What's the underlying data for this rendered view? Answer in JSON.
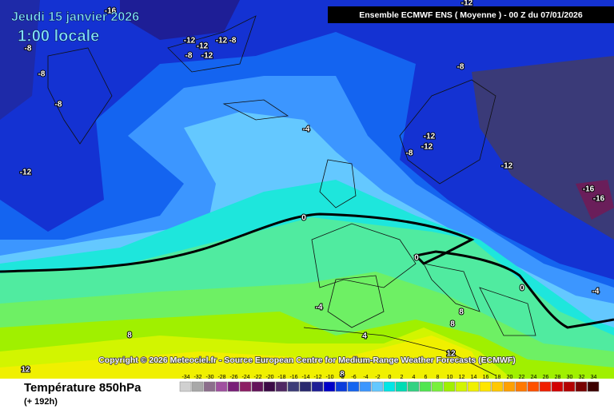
{
  "header": {
    "date": "Jeudi 15 janvier 2026",
    "time": "1:00 locale",
    "model": "Ensemble ECMWF ENS  ( Moyenne )  -  00 Z du 07/01/2026"
  },
  "copyright": "Copyright © 2026 Meteociel.fr - Source European Centre for Medium-Range Weather Forecasts (ECMWF)",
  "footer": {
    "title": "Température 850hPa",
    "subtitle": "(+ 192h)"
  },
  "contour_labels": [
    -16,
    -12,
    -12,
    -12,
    -8,
    -8,
    -12,
    -8,
    -8,
    -8,
    -12,
    -4,
    -8,
    -12,
    -12,
    -12,
    -8,
    -12,
    -16,
    -16,
    0,
    0,
    0,
    -4,
    -4,
    4,
    8,
    8,
    8,
    12,
    12,
    8
  ],
  "legend": {
    "values": [
      -34,
      -32,
      -30,
      -28,
      -26,
      -24,
      -22,
      -20,
      -18,
      -16,
      -14,
      -12,
      -10,
      -8,
      -6,
      -4,
      -2,
      0,
      2,
      4,
      6,
      8,
      10,
      12,
      14,
      16,
      18,
      20,
      22,
      24,
      26,
      28,
      30,
      32,
      34
    ],
    "colors": [
      "#d0d0d0",
      "#a8a8a8",
      "#8c6e8c",
      "#a050a0",
      "#781e78",
      "#8c1e64",
      "#64145a",
      "#3c0a46",
      "#502864",
      "#3c3c78",
      "#28286e",
      "#1e1e96",
      "#0000c8",
      "#0a3cdc",
      "#1464f0",
      "#3c96ff",
      "#64c8ff",
      "#00e6e6",
      "#00dcb4",
      "#32d282",
      "#50e650",
      "#78f03c",
      "#a0f000",
      "#d2f500",
      "#f0f000",
      "#ffe600",
      "#ffc800",
      "#ffa000",
      "#ff7800",
      "#ff5000",
      "#f01e00",
      "#d20000",
      "#b40000",
      "#780000",
      "#3c0000"
    ]
  }
}
